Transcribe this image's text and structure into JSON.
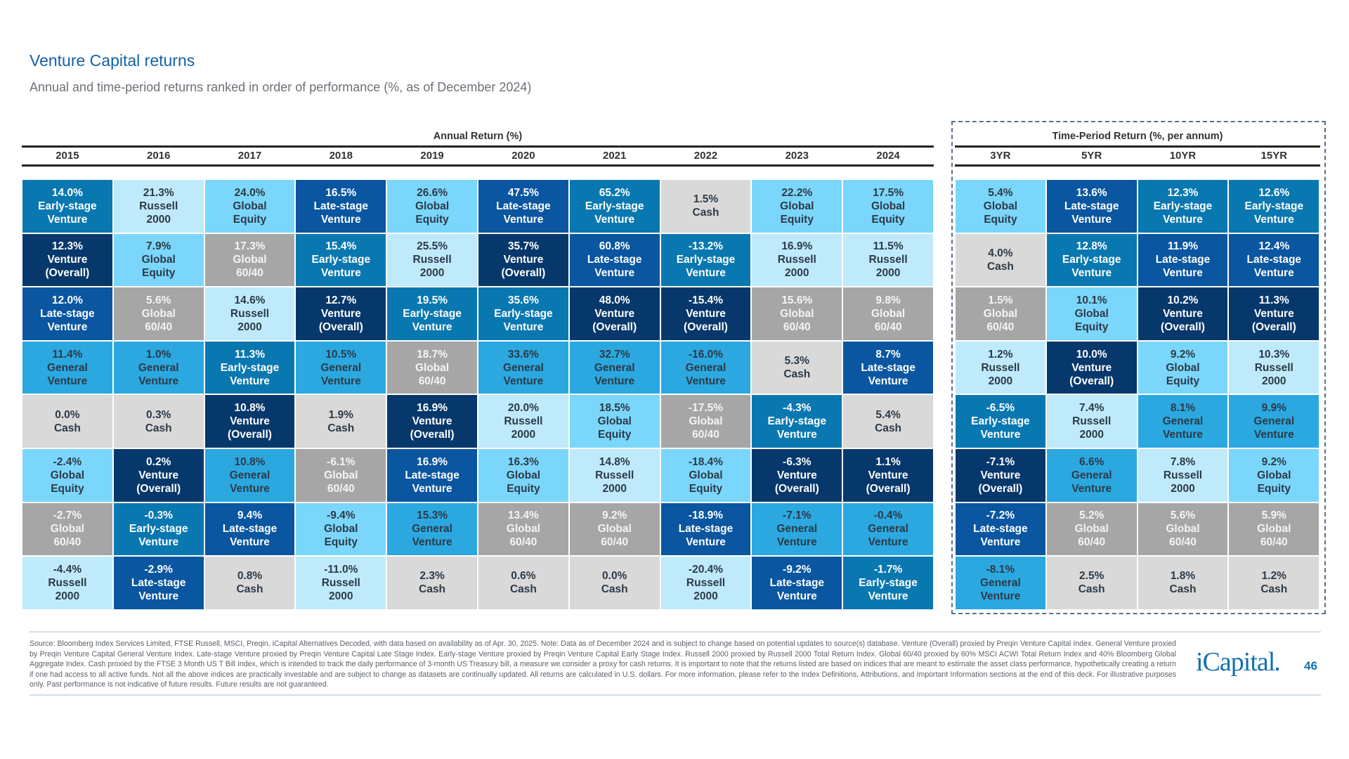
{
  "header": {
    "title": "Venture Capital returns",
    "subtitle": "Annual and time-period returns ranked in order of performance (%, as of December 2024)"
  },
  "annual_group_label": "Annual Return (%)",
  "period_group_label": "Time-Period Return (%, per annum)",
  "assets": {
    "early": {
      "lines": [
        "Early-stage",
        "Venture"
      ],
      "color": "#0a78b0",
      "text_color": "#ffffff"
    },
    "late": {
      "lines": [
        "Late-stage",
        "Venture"
      ],
      "color": "#0a56a0",
      "text_color": "#ffffff"
    },
    "overall": {
      "lines": [
        "Venture",
        "(Overall)"
      ],
      "color": "#07386c",
      "text_color": "#ffffff"
    },
    "general": {
      "lines": [
        "General",
        "Venture"
      ],
      "color": "#2ba8e0",
      "text_color": "#2c3a47"
    },
    "equity": {
      "lines": [
        "Global",
        "Equity"
      ],
      "color": "#7bd6fb",
      "text_color": "#2c3a47"
    },
    "russell": {
      "lines": [
        "Russell",
        "2000"
      ],
      "color": "#bfeafc",
      "text_color": "#2c3a47"
    },
    "sixty": {
      "lines": [
        "Global",
        "60/40"
      ],
      "color": "#a6a6a6",
      "text_color": "#f4f4f4"
    },
    "cash": {
      "lines": [
        "Cash"
      ],
      "color": "#d9d9d9",
      "text_color": "#2c3a47"
    }
  },
  "annual_columns": [
    {
      "header": "2015",
      "cells": [
        [
          "14.0%",
          "early"
        ],
        [
          "12.3%",
          "overall"
        ],
        [
          "12.0%",
          "late"
        ],
        [
          "11.4%",
          "general"
        ],
        [
          "0.0%",
          "cash"
        ],
        [
          "-2.4%",
          "equity"
        ],
        [
          "-2.7%",
          "sixty"
        ],
        [
          "-4.4%",
          "russell"
        ]
      ]
    },
    {
      "header": "2016",
      "cells": [
        [
          "21.3%",
          "russell"
        ],
        [
          "7.9%",
          "equity"
        ],
        [
          "5.6%",
          "sixty"
        ],
        [
          "1.0%",
          "general"
        ],
        [
          "0.3%",
          "cash"
        ],
        [
          "0.2%",
          "overall"
        ],
        [
          "-0.3%",
          "early"
        ],
        [
          "-2.9%",
          "late"
        ]
      ]
    },
    {
      "header": "2017",
      "cells": [
        [
          "24.0%",
          "equity"
        ],
        [
          "17.3%",
          "sixty"
        ],
        [
          "14.6%",
          "russell"
        ],
        [
          "11.3%",
          "early"
        ],
        [
          "10.8%",
          "overall"
        ],
        [
          "10.8%",
          "general"
        ],
        [
          "9.4%",
          "late"
        ],
        [
          "0.8%",
          "cash"
        ]
      ]
    },
    {
      "header": "2018",
      "cells": [
        [
          "16.5%",
          "late"
        ],
        [
          "15.4%",
          "early"
        ],
        [
          "12.7%",
          "overall"
        ],
        [
          "10.5%",
          "general"
        ],
        [
          "1.9%",
          "cash"
        ],
        [
          "-6.1%",
          "sixty"
        ],
        [
          "-9.4%",
          "equity"
        ],
        [
          "-11.0%",
          "russell"
        ]
      ]
    },
    {
      "header": "2019",
      "cells": [
        [
          "26.6%",
          "equity"
        ],
        [
          "25.5%",
          "russell"
        ],
        [
          "19.5%",
          "early"
        ],
        [
          "18.7%",
          "sixty"
        ],
        [
          "16.9%",
          "overall"
        ],
        [
          "16.9%",
          "late"
        ],
        [
          "15.3%",
          "general"
        ],
        [
          "2.3%",
          "cash"
        ]
      ]
    },
    {
      "header": "2020",
      "cells": [
        [
          "47.5%",
          "late"
        ],
        [
          "35.7%",
          "overall"
        ],
        [
          "35.6%",
          "early"
        ],
        [
          "33.6%",
          "general"
        ],
        [
          "20.0%",
          "russell"
        ],
        [
          "16.3%",
          "equity"
        ],
        [
          "13.4%",
          "sixty"
        ],
        [
          "0.6%",
          "cash"
        ]
      ]
    },
    {
      "header": "2021",
      "cells": [
        [
          "65.2%",
          "early"
        ],
        [
          "60.8%",
          "late"
        ],
        [
          "48.0%",
          "overall"
        ],
        [
          "32.7%",
          "general"
        ],
        [
          "18.5%",
          "equity"
        ],
        [
          "14.8%",
          "russell"
        ],
        [
          "9.2%",
          "sixty"
        ],
        [
          "0.0%",
          "cash"
        ]
      ]
    },
    {
      "header": "2022",
      "cells": [
        [
          "1.5%",
          "cash"
        ],
        [
          "-13.2%",
          "early"
        ],
        [
          "-15.4%",
          "overall"
        ],
        [
          "-16.0%",
          "general"
        ],
        [
          "-17.5%",
          "sixty"
        ],
        [
          "-18.4%",
          "equity"
        ],
        [
          "-18.9%",
          "late"
        ],
        [
          "-20.4%",
          "russell"
        ]
      ]
    },
    {
      "header": "2023",
      "cells": [
        [
          "22.2%",
          "equity"
        ],
        [
          "16.9%",
          "russell"
        ],
        [
          "15.6%",
          "sixty"
        ],
        [
          "5.3%",
          "cash"
        ],
        [
          "-4.3%",
          "early"
        ],
        [
          "-6.3%",
          "overall"
        ],
        [
          "-7.1%",
          "general"
        ],
        [
          "-9.2%",
          "late"
        ]
      ]
    },
    {
      "header": "2024",
      "cells": [
        [
          "17.5%",
          "equity"
        ],
        [
          "11.5%",
          "russell"
        ],
        [
          "9.8%",
          "sixty"
        ],
        [
          "8.7%",
          "late"
        ],
        [
          "5.4%",
          "cash"
        ],
        [
          "1.1%",
          "overall"
        ],
        [
          "-0.4%",
          "general"
        ],
        [
          "-1.7%",
          "early"
        ]
      ]
    }
  ],
  "period_columns": [
    {
      "header": "3YR",
      "cells": [
        [
          "5.4%",
          "equity"
        ],
        [
          "4.0%",
          "cash"
        ],
        [
          "1.5%",
          "sixty"
        ],
        [
          "1.2%",
          "russell"
        ],
        [
          "-6.5%",
          "early"
        ],
        [
          "-7.1%",
          "overall"
        ],
        [
          "-7.2%",
          "late"
        ],
        [
          "-8.1%",
          "general"
        ]
      ]
    },
    {
      "header": "5YR",
      "cells": [
        [
          "13.6%",
          "late"
        ],
        [
          "12.8%",
          "early"
        ],
        [
          "10.1%",
          "equity"
        ],
        [
          "10.0%",
          "overall"
        ],
        [
          "7.4%",
          "russell"
        ],
        [
          "6.6%",
          "general"
        ],
        [
          "5.2%",
          "sixty"
        ],
        [
          "2.5%",
          "cash"
        ]
      ]
    },
    {
      "header": "10YR",
      "cells": [
        [
          "12.3%",
          "early"
        ],
        [
          "11.9%",
          "late"
        ],
        [
          "10.2%",
          "overall"
        ],
        [
          "9.2%",
          "equity"
        ],
        [
          "8.1%",
          "general"
        ],
        [
          "7.8%",
          "russell"
        ],
        [
          "5.6%",
          "sixty"
        ],
        [
          "1.8%",
          "cash"
        ]
      ]
    },
    {
      "header": "15YR",
      "cells": [
        [
          "12.6%",
          "early"
        ],
        [
          "12.4%",
          "late"
        ],
        [
          "11.3%",
          "overall"
        ],
        [
          "10.3%",
          "russell"
        ],
        [
          "9.9%",
          "general"
        ],
        [
          "9.2%",
          "equity"
        ],
        [
          "5.9%",
          "sixty"
        ],
        [
          "1.2%",
          "cash"
        ]
      ]
    }
  ],
  "footnote": "Source: Bloomberg Index Services Limited, FTSE Russell, MSCI, Preqin, iCapital Alternatives Decoded, with data based on availability as of Apr. 30, 2025. Note: Data as of December 2024 and is subject to change based on potential updates to source(s) database. Venture (Overall) proxied by Preqin Venture Capital Index. General Venture proxied by Preqin Venture Capital General Venture Index. Late-stage Venture proxied by Preqin Venture Capital Late Stage Index. Early-stage Venture proxied by Preqin Venture Capital Early Stage Index. Russell 2000 proxied by Russell 2000 Total Return Index. Global 60/40 proxied by 60% MSCI ACWI Total Return Index and 40% Bloomberg Global Aggregate Index. Cash proxied by the FTSE 3 Month US T Bill Index, which is intended to track the daily performance of 3-month US Treasury bill, a measure we consider a proxy for cash returns. It is important to note that the returns listed are based on indices that are meant to estimate the asset class performance, hypothetically creating a return if one had access to all active funds. Not all the above indices are practically investable and are subject to change as datasets are continually updated. All returns are calculated in U.S. dollars. For more information, please refer to the Index Definitions, Attributions, and Important Information sections at the end of this deck. For illustrative purposes only. Past performance is not indicative of future results. Future results are not guaranteed.",
  "logo_text": "iCapital",
  "page_number": "46"
}
